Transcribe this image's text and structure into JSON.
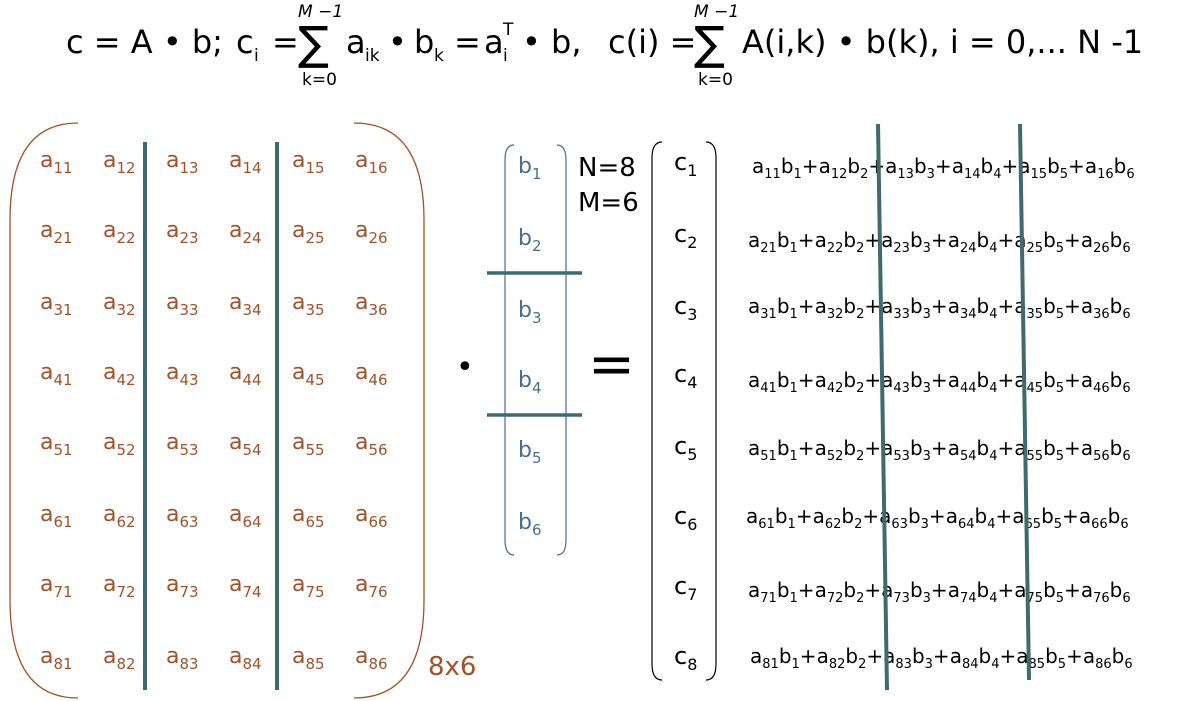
{
  "formula": {
    "part1": "c = A • b;",
    "ci": "c",
    "ci_sub": "i",
    "eq": "=",
    "sum_top": "M −1",
    "sum_bottom": "k=0",
    "term_a": "a",
    "term_a_sub": "ik",
    "dot": "•",
    "term_b": "b",
    "term_b_sub": "k",
    "eq2": "=",
    "term_ai": "a",
    "term_ai_sub": "i",
    "term_ai_sup": "T",
    "term_tail": "• b,",
    "part3": "c(i) =",
    "sum2_top": "M −1",
    "sum2_bottom": "k=0",
    "part3_tail": "A(i,k) • b(k),  i = 0,... N -1"
  },
  "matrix_a": {
    "rows": [
      [
        "11",
        "12",
        "13",
        "14",
        "15",
        "16"
      ],
      [
        "21",
        "22",
        "23",
        "24",
        "25",
        "26"
      ],
      [
        "31",
        "32",
        "33",
        "34",
        "35",
        "36"
      ],
      [
        "41",
        "42",
        "43",
        "44",
        "45",
        "46"
      ],
      [
        "51",
        "52",
        "53",
        "54",
        "55",
        "56"
      ],
      [
        "61",
        "62",
        "63",
        "64",
        "65",
        "66"
      ],
      [
        "71",
        "72",
        "73",
        "74",
        "75",
        "76"
      ],
      [
        "81",
        "82",
        "83",
        "84",
        "85",
        "86"
      ]
    ],
    "letter": "a",
    "size_label": "8x6"
  },
  "vector_b": {
    "letter": "b",
    "indices": [
      "1",
      "2",
      "3",
      "4",
      "5",
      "6"
    ]
  },
  "params": {
    "n": "N=8",
    "m": "M=6"
  },
  "operator_dot": "•",
  "operator_eq": "=",
  "vector_c": {
    "letter": "c",
    "indices": [
      "1",
      "2",
      "3",
      "4",
      "5",
      "6",
      "7",
      "8"
    ]
  },
  "colors": {
    "matrix": "#a0522d",
    "vector": "#4a6e8f",
    "divider": "#3f6b6e"
  }
}
